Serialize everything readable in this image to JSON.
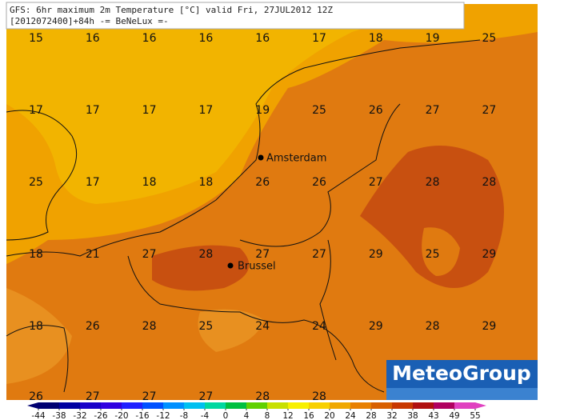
{
  "header": {
    "line1": "GFS: 6hr maximum 2m Temperature [°C] valid Fri, 27JUL2012 12Z",
    "line2": "[2012072400]+84h -= BeNeLux =-"
  },
  "grid_values": [
    [
      15,
      16,
      16,
      16,
      16,
      17,
      18,
      19,
      25
    ],
    [
      17,
      17,
      17,
      17,
      19,
      25,
      26,
      27,
      27
    ],
    [
      25,
      17,
      18,
      18,
      26,
      26,
      27,
      28,
      28
    ],
    [
      18,
      21,
      27,
      28,
      27,
      27,
      29,
      25,
      29
    ],
    [
      18,
      26,
      28,
      25,
      24,
      24,
      29,
      28,
      29
    ],
    [
      26,
      27,
      27,
      27,
      28,
      28
    ]
  ],
  "cities": [
    "Amsterdam",
    "Brussel"
  ],
  "logo": "MeteoGroup",
  "legend": {
    "ticks": [
      -44,
      -38,
      -32,
      -26,
      -20,
      -16,
      -12,
      -8,
      -4,
      0,
      4,
      8,
      12,
      16,
      20,
      24,
      28,
      32,
      38,
      43,
      49,
      55
    ],
    "colors": [
      "#000070",
      "#0000a0",
      "#1800c8",
      "#3000e0",
      "#2020ff",
      "#0050ff",
      "#0090ff",
      "#00c0f0",
      "#00d8a0",
      "#00c040",
      "#60d000",
      "#c8e000",
      "#f8f000",
      "#f8d000",
      "#f0a800",
      "#e88000",
      "#d86000",
      "#c83800",
      "#b01010",
      "#b00060",
      "#e040c0"
    ]
  }
}
